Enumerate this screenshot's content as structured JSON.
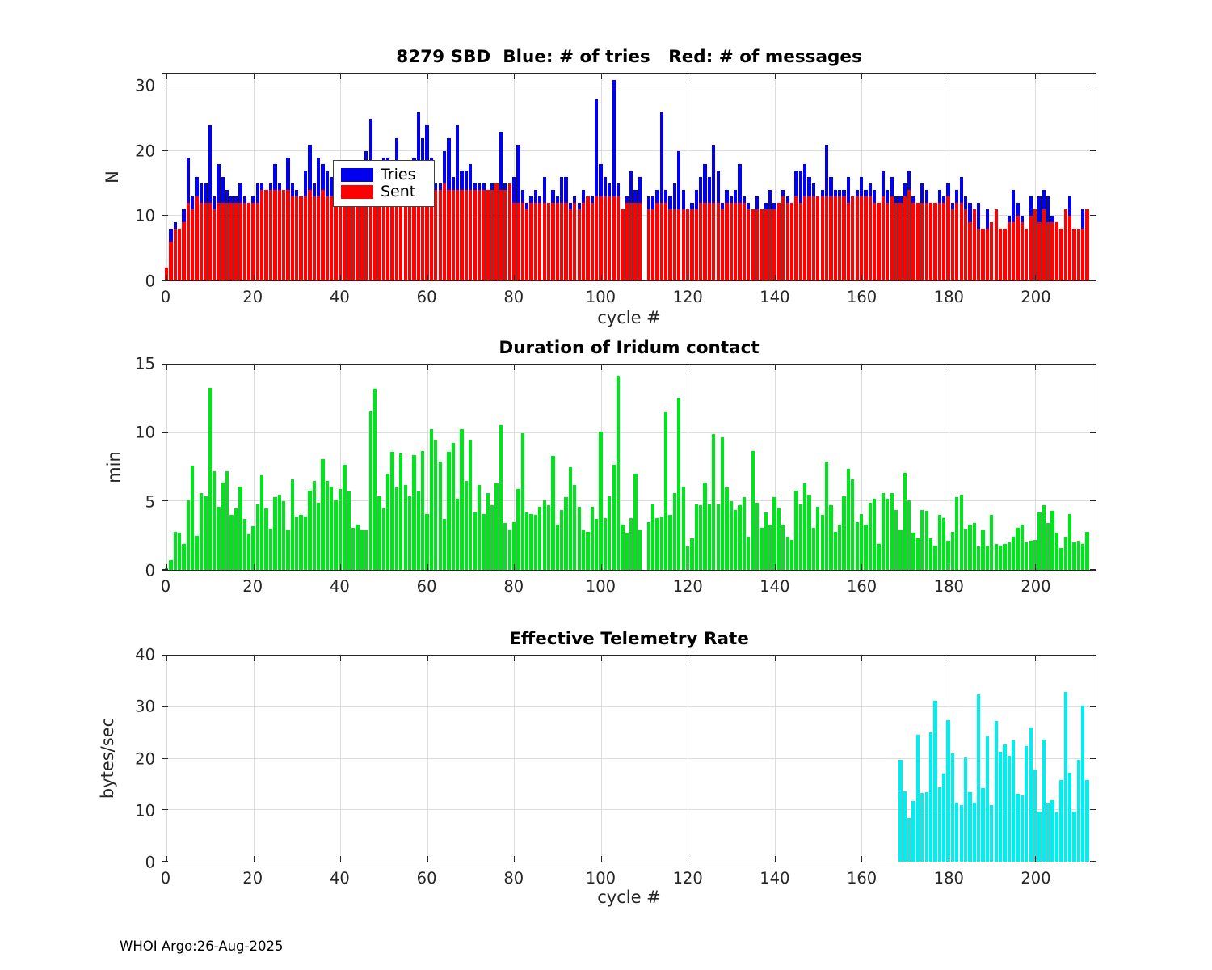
{
  "footer": {
    "text": "WHOI Argo:26-Aug-2025"
  },
  "colors": {
    "blue": "#0000ee",
    "red": "#ff0000",
    "green": "#00e41c",
    "cyan": "#00eeee",
    "grid": "#dcdcdc",
    "axis": "#262626"
  },
  "chart_data": [
    {
      "type": "bar",
      "title": "8279 SBD  Blue: # of tries   Red: # of messages",
      "ylabel": "N",
      "xlabel": "cycle #",
      "ylim": [
        0,
        32
      ],
      "yticks": [
        0,
        10,
        20,
        30
      ],
      "xticks": [
        0,
        20,
        40,
        60,
        80,
        100,
        120,
        140,
        160,
        180,
        200
      ],
      "xlim": [
        -0.93,
        213.93
      ],
      "grid": true,
      "legend": {
        "position": "top-left",
        "entries": [
          {
            "label": "Tries",
            "color": "blue"
          },
          {
            "label": "Sent",
            "color": "red"
          }
        ]
      },
      "series": [
        {
          "name": "Tries",
          "color": "blue",
          "start": 0,
          "values": [
            2,
            8,
            9,
            8,
            11,
            19,
            13,
            16,
            15,
            15,
            24,
            13,
            18,
            16,
            14,
            13,
            13,
            15,
            13,
            12,
            13,
            15,
            15,
            14,
            15,
            18,
            15,
            14,
            19,
            15,
            14,
            13,
            17,
            21,
            15,
            19,
            18,
            17,
            16,
            16,
            18,
            17,
            15,
            14,
            14,
            14,
            20,
            25,
            16,
            17,
            19,
            19,
            16,
            22,
            18,
            17,
            18,
            19,
            26,
            22,
            24,
            19,
            15,
            15,
            20,
            22,
            16,
            24,
            17,
            17,
            18,
            15,
            15,
            15,
            14,
            15,
            15,
            23,
            15,
            15,
            16,
            21,
            14,
            12,
            13,
            14,
            13,
            16,
            12,
            14,
            13,
            16,
            16,
            12,
            13,
            12,
            14,
            13,
            13,
            28,
            18,
            16,
            15,
            31,
            15,
            11,
            13,
            17,
            14,
            16,
            null,
            13,
            13,
            14,
            26,
            14,
            13,
            15,
            20,
            14,
            11,
            12,
            14,
            16,
            18,
            16,
            21,
            17,
            12,
            14,
            13,
            14,
            18,
            13,
            12,
            11,
            13,
            11,
            12,
            14,
            12,
            12,
            14,
            13,
            12,
            17,
            17,
            18,
            16,
            15,
            13,
            14,
            21,
            16,
            14,
            14,
            14,
            16,
            13,
            14,
            16,
            14,
            15,
            14,
            12,
            17,
            14,
            16,
            13,
            13,
            15,
            17,
            13,
            12,
            15,
            14,
            12,
            12,
            14,
            13,
            15,
            12,
            14,
            16,
            13,
            12,
            11,
            12,
            8,
            11,
            9,
            11,
            8,
            8,
            10,
            14,
            12,
            10,
            8,
            13,
            11,
            13,
            14,
            13,
            10,
            9,
            8,
            11,
            13,
            8,
            8,
            11,
            11
          ]
        },
        {
          "name": "Sent",
          "color": "red",
          "start": 0,
          "values": [
            2,
            6,
            8,
            8,
            9,
            12,
            11,
            13,
            12,
            12,
            12,
            11,
            12,
            12,
            12,
            12,
            12,
            12,
            12,
            12,
            12,
            12,
            14,
            14,
            14,
            14,
            14,
            14,
            14,
            13,
            13,
            13,
            13,
            14,
            13,
            13,
            14,
            13,
            13,
            13,
            14,
            15,
            14,
            14,
            14,
            14,
            14,
            14,
            15,
            15,
            14,
            14,
            14,
            15,
            15,
            14,
            14,
            15,
            15,
            14,
            14,
            15,
            14,
            14,
            15,
            14,
            14,
            14,
            14,
            14,
            14,
            14,
            14,
            14,
            14,
            14,
            15,
            14,
            14,
            15,
            12,
            12,
            12,
            11,
            12,
            12,
            12,
            12,
            12,
            12,
            12,
            12,
            12,
            11,
            12,
            11,
            12,
            13,
            12,
            13,
            13,
            13,
            13,
            13,
            13,
            11,
            12,
            12,
            12,
            12,
            null,
            11,
            11,
            12,
            12,
            12,
            11,
            11,
            11,
            11,
            11,
            11,
            11,
            12,
            12,
            12,
            12,
            12,
            11,
            12,
            12,
            12,
            12,
            12,
            11,
            11,
            11,
            11,
            11,
            11,
            11,
            12,
            13,
            12,
            12,
            13,
            12,
            13,
            13,
            13,
            13,
            13,
            13,
            13,
            13,
            13,
            13,
            12,
            13,
            13,
            13,
            13,
            13,
            12,
            12,
            13,
            12,
            13,
            12,
            12,
            13,
            14,
            12,
            12,
            12,
            12,
            12,
            12,
            12,
            12,
            13,
            11,
            12,
            12,
            11,
            9,
            11,
            8,
            8,
            8,
            9,
            11,
            8,
            8,
            9,
            9,
            10,
            9,
            8,
            10,
            11,
            9,
            11,
            9,
            9,
            9,
            8,
            11,
            10,
            8,
            8,
            8,
            11
          ]
        }
      ]
    },
    {
      "type": "bar",
      "title": "Duration of Iridum contact",
      "ylabel": "min",
      "xlabel": "",
      "ylim": [
        0,
        15
      ],
      "yticks": [
        0,
        5,
        10,
        15
      ],
      "xticks": [
        0,
        20,
        40,
        60,
        80,
        100,
        120,
        140,
        160,
        180,
        200
      ],
      "xlim": [
        -0.93,
        213.93
      ],
      "grid": true,
      "series": [
        {
          "name": "Duration",
          "color": "green",
          "start": 0,
          "values": [
            0.1,
            0.7,
            2.8,
            2.7,
            1.9,
            5.1,
            7.6,
            2.5,
            5.6,
            5.4,
            13.3,
            7.2,
            4.6,
            6.4,
            7.2,
            4.0,
            4.5,
            6.1,
            3.7,
            2.6,
            3.2,
            4.8,
            6.9,
            4.5,
            3.0,
            5.3,
            5.5,
            5.0,
            2.9,
            6.6,
            3.9,
            4.0,
            3.9,
            5.8,
            6.5,
            4.9,
            8.1,
            6.5,
            6.1,
            5.1,
            5.9,
            7.7,
            5.7,
            3.1,
            3.3,
            2.9,
            2.9,
            11.6,
            13.2,
            5.4,
            4.5,
            7.0,
            8.6,
            6.0,
            8.5,
            6.2,
            5.4,
            8.4,
            5.7,
            8.7,
            4.1,
            10.3,
            9.5,
            7.9,
            3.7,
            8.6,
            9.3,
            5.2,
            10.3,
            6.5,
            9.5,
            4.2,
            6.2,
            4.1,
            5.6,
            4.7,
            6.3,
            10.6,
            3.4,
            2.9,
            3.5,
            5.9,
            10.0,
            4.2,
            4.1,
            4.0,
            4.6,
            5.1,
            4.7,
            8.3,
            3.3,
            4.4,
            5.3,
            7.5,
            6.2,
            4.6,
            2.9,
            2.8,
            4.6,
            3.7,
            10.1,
            3.8,
            5.4,
            7.7,
            14.2,
            3.3,
            2.7,
            3.8,
            7.0,
            2.9,
            null,
            3.5,
            4.8,
            3.8,
            3.9,
            11.5,
            4.0,
            5.6,
            12.6,
            6.1,
            1.7,
            2.3,
            4.8,
            4.7,
            6.4,
            4.8,
            9.9,
            4.8,
            9.7,
            6.0,
            5.0,
            4.4,
            4.7,
            5.3,
            2.4,
            8.7,
            4.9,
            3.1,
            4.2,
            3.3,
            5.3,
            4.5,
            3.3,
            2.4,
            2.2,
            5.8,
            4.8,
            6.3,
            5.5,
            3.1,
            4.6,
            4.0,
            7.9,
            4.7,
            2.8,
            3.3,
            5.4,
            7.4,
            6.6,
            3.5,
            4.1,
            3.3,
            4.9,
            5.2,
            1.9,
            5.6,
            5.2,
            5.6,
            4.4,
            2.9,
            7.1,
            5.1,
            2.7,
            2.3,
            4.4,
            4.3,
            2.3,
            1.8,
            4.0,
            3.8,
            2.1,
            2.8,
            5.3,
            5.5,
            3.0,
            3.3,
            3.4,
            1.7,
            2.9,
            1.7,
            4.0,
            1.9,
            1.8,
            1.9,
            2.0,
            2.4,
            3.1,
            3.3,
            2.0,
            2.1,
            2.2,
            4.2,
            4.7,
            3.4,
            4.3,
            2.7,
            1.6,
            2.4,
            4.1,
            2.0,
            2.1,
            1.9,
            2.8
          ]
        }
      ]
    },
    {
      "type": "bar",
      "title": "Effective Telemetry Rate",
      "ylabel": "bytes/sec",
      "xlabel": "cycle #",
      "ylim": [
        0,
        40
      ],
      "yticks": [
        0,
        10,
        20,
        30,
        40
      ],
      "xticks": [
        0,
        20,
        40,
        60,
        80,
        100,
        120,
        140,
        160,
        180,
        200
      ],
      "xlim": [
        -0.93,
        213.93
      ],
      "grid": true,
      "series": [
        {
          "name": "Rate",
          "color": "cyan",
          "start": 169,
          "values": [
            19.7,
            13.6,
            8.4,
            11.7,
            24.7,
            13.4,
            13.5,
            25.1,
            31.2,
            14.4,
            17.1,
            27.5,
            21.1,
            11.4,
            11.0,
            20.3,
            13.5,
            11.5,
            32.5,
            14.2,
            24.3,
            11.0,
            27.3,
            21.3,
            22.8,
            20.6,
            23.6,
            13.2,
            12.8,
            22.4,
            26.1,
            17.9,
            9.8,
            23.7,
            11.5,
            12.0,
            9.6,
            15.8,
            33.0,
            17.2,
            9.8,
            19.7,
            30.2,
            15.8
          ]
        }
      ]
    }
  ]
}
